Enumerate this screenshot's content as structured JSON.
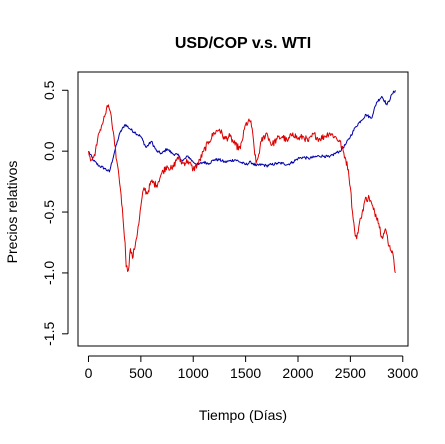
{
  "chart_data": {
    "type": "line",
    "title": "USD/COP v.s. WTI",
    "xlabel": "Tiempo (Días)",
    "ylabel": "Precios relativos",
    "xlim": [
      -100,
      3050
    ],
    "ylim": [
      -1.6,
      0.65
    ],
    "x_ticks": [
      0,
      500,
      1000,
      1500,
      2000,
      2500,
      3000
    ],
    "x_tick_labels": [
      "0",
      "500",
      "1000",
      "1500",
      "2000",
      "2500",
      "3000"
    ],
    "y_ticks": [
      -1.5,
      -1.0,
      -0.5,
      0.0,
      0.5
    ],
    "y_tick_labels": [
      "-1.5",
      "-1.0",
      "-0.5",
      "0.0",
      "0.5"
    ],
    "grid": false,
    "series": [
      {
        "color": "#0000aa",
        "x": [
          0,
          50,
          100,
          150,
          200,
          250,
          300,
          350,
          400,
          450,
          500,
          550,
          600,
          650,
          700,
          750,
          800,
          850,
          900,
          950,
          1000,
          1050,
          1100,
          1150,
          1200,
          1250,
          1300,
          1350,
          1400,
          1450,
          1500,
          1550,
          1600,
          1650,
          1700,
          1750,
          1800,
          1850,
          1900,
          1950,
          2000,
          2050,
          2100,
          2150,
          2200,
          2250,
          2300,
          2350,
          2400,
          2450,
          2500,
          2550,
          2600,
          2650,
          2700,
          2750,
          2800,
          2850,
          2900,
          2930
        ],
        "y": [
          0.0,
          -0.08,
          -0.12,
          -0.14,
          -0.17,
          0.0,
          0.15,
          0.22,
          0.18,
          0.15,
          0.12,
          0.03,
          0.08,
          0.0,
          -0.02,
          0.02,
          -0.02,
          -0.03,
          -0.08,
          -0.04,
          -0.09,
          -0.11,
          -0.09,
          -0.1,
          -0.07,
          -0.07,
          -0.09,
          -0.08,
          -0.07,
          -0.09,
          -0.11,
          -0.09,
          -0.12,
          -0.11,
          -0.12,
          -0.11,
          -0.1,
          -0.1,
          -0.11,
          -0.09,
          -0.06,
          -0.05,
          -0.06,
          -0.05,
          -0.04,
          -0.04,
          -0.05,
          -0.02,
          0.0,
          0.05,
          0.12,
          0.2,
          0.25,
          0.3,
          0.27,
          0.4,
          0.45,
          0.38,
          0.47,
          0.5
        ]
      },
      {
        "color": "#dd0000",
        "x": [
          0,
          20,
          50,
          80,
          100,
          130,
          160,
          190,
          210,
          230,
          250,
          270,
          290,
          310,
          330,
          350,
          360,
          380,
          400,
          420,
          450,
          480,
          500,
          530,
          560,
          600,
          650,
          700,
          750,
          800,
          850,
          900,
          950,
          1000,
          1050,
          1100,
          1150,
          1200,
          1250,
          1300,
          1350,
          1400,
          1450,
          1500,
          1550,
          1600,
          1620,
          1650,
          1700,
          1750,
          1800,
          1850,
          1900,
          1950,
          2000,
          2050,
          2100,
          2150,
          2200,
          2250,
          2300,
          2350,
          2400,
          2450,
          2480,
          2500,
          2520,
          2540,
          2560,
          2580,
          2600,
          2640,
          2680,
          2720,
          2760,
          2800,
          2840,
          2870,
          2900,
          2920,
          2930
        ],
        "y": [
          0.0,
          -0.08,
          -0.05,
          0.05,
          0.15,
          0.22,
          0.3,
          0.38,
          0.32,
          0.18,
          0.05,
          -0.08,
          -0.2,
          -0.35,
          -0.55,
          -0.75,
          -0.95,
          -0.98,
          -0.8,
          -0.88,
          -0.75,
          -0.6,
          -0.45,
          -0.3,
          -0.35,
          -0.25,
          -0.28,
          -0.18,
          -0.12,
          -0.15,
          -0.05,
          -0.1,
          -0.08,
          -0.15,
          -0.1,
          0.0,
          0.08,
          0.15,
          0.18,
          0.1,
          0.12,
          0.05,
          0.02,
          0.22,
          0.25,
          -0.1,
          -0.05,
          0.08,
          0.15,
          0.05,
          0.1,
          0.12,
          0.08,
          0.15,
          0.1,
          0.12,
          0.08,
          0.14,
          0.1,
          0.12,
          0.15,
          0.12,
          0.08,
          -0.05,
          -0.15,
          -0.3,
          -0.5,
          -0.65,
          -0.72,
          -0.62,
          -0.55,
          -0.4,
          -0.38,
          -0.48,
          -0.55,
          -0.7,
          -0.65,
          -0.78,
          -0.82,
          -0.95,
          -1.0
        ]
      }
    ]
  }
}
